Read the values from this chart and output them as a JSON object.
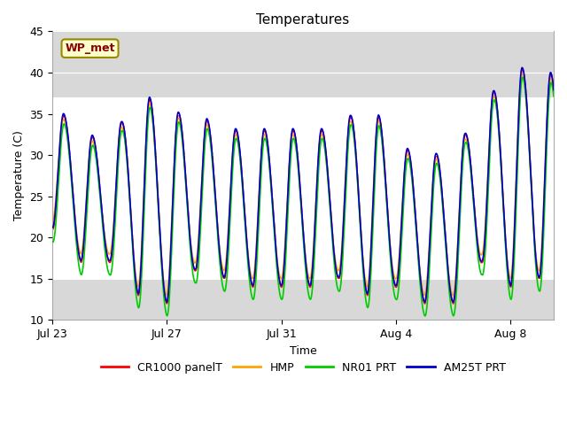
{
  "title": "Temperatures",
  "xlabel": "Time",
  "ylabel": "Temperature (C)",
  "ylim": [
    10,
    45
  ],
  "yticks": [
    10,
    15,
    20,
    25,
    30,
    35,
    40,
    45
  ],
  "xtick_labels": [
    "Jul 23",
    "Jul 27",
    "Jul 31",
    "Aug 4",
    "Aug 8"
  ],
  "xtick_positions": [
    0,
    4,
    8,
    12,
    16
  ],
  "total_days": 18,
  "shaded_band_white": [
    15,
    37
  ],
  "series_colors": {
    "CR1000 panelT": "#ff0000",
    "HMP": "#ffa500",
    "NR01 PRT": "#00cc00",
    "AM25T PRT": "#0000cc"
  },
  "annotation_text": "WP_met",
  "annotation_box_color": "#ffffcc",
  "annotation_box_edge": "#998800",
  "annotation_text_color": "#880000",
  "background_plot": "#d8d8d8",
  "background_fig": "#ffffff",
  "title_fontsize": 11,
  "axis_fontsize": 9,
  "tick_fontsize": 9,
  "day_peaks": [
    36,
    33,
    31,
    38,
    35,
    35,
    33,
    33,
    33,
    33,
    33,
    37,
    31,
    30,
    30,
    36,
    40,
    41,
    38
  ],
  "day_troughs": [
    21,
    17,
    17,
    13,
    12,
    16,
    15,
    14,
    14,
    14,
    15,
    13,
    14,
    12,
    12,
    17,
    14,
    15,
    15
  ]
}
